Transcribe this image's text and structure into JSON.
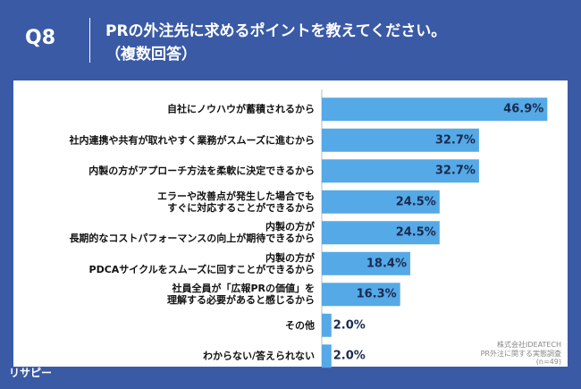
{
  "header": {
    "question": "Q8"
  },
  "logo": "リサピー",
  "chart_data": {
    "type": "hbar",
    "title": "PRの外注先に求めるポイントを教えてください。",
    "subtitle": "（複数回答）",
    "categories": [
      "自社にノウハウが蓄積されるから",
      "社内連携や共有が取れやすく業務がスムーズに進むから",
      "内製の方がアプローチ方法を柔軟に決定できるから",
      "エラーや改善点が発生した場合でも\nすぐに対応することができるから",
      "内製の方が\n長期的なコストパフォーマンスの向上が期待できるから",
      "内製の方が\nPDCAサイクルをスムーズに回すことができるから",
      "社員全員が「広報PRの価値」を\n理解する必要があると感じるから",
      "その他",
      "わからない/答えられない"
    ],
    "values": [
      46.9,
      32.7,
      32.7,
      24.5,
      24.5,
      18.4,
      16.3,
      2.0,
      2.0
    ],
    "value_labels": [
      "46.9%",
      "32.7%",
      "32.7%",
      "24.5%",
      "24.5%",
      "18.4%",
      "16.3%",
      "2.0%",
      "2.0%"
    ],
    "color": "#55a9e6",
    "xlim": [
      0,
      50
    ],
    "notes": [
      "株式会社IDEATECH",
      "PR外注に関する実態調査",
      "(n=49)"
    ]
  }
}
